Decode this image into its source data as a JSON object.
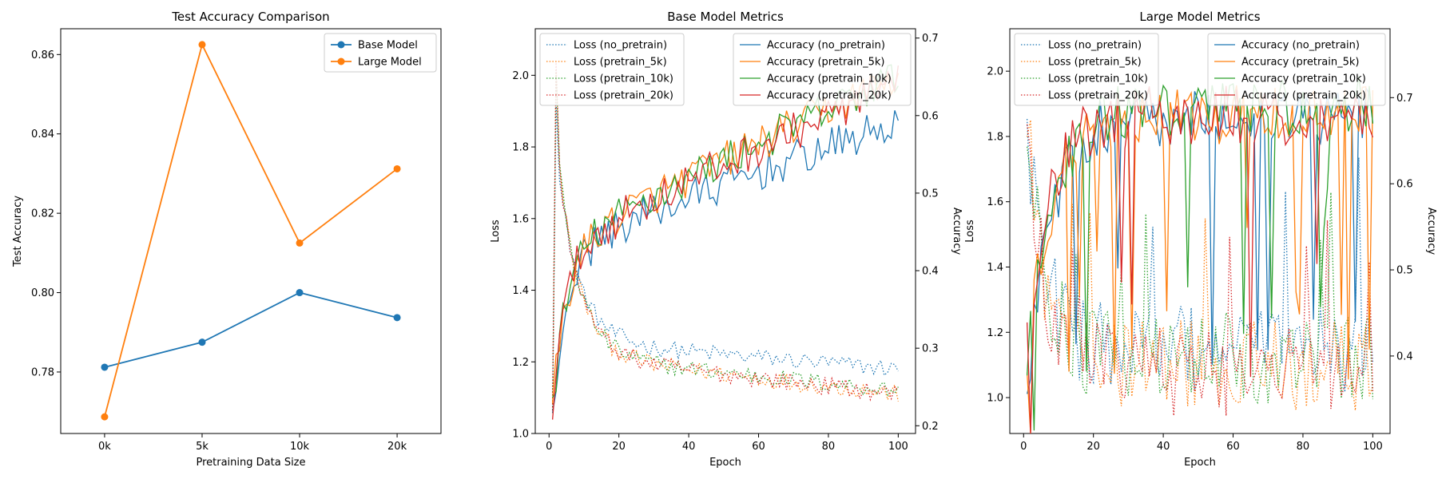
{
  "colors": {
    "blue": "#1f77b4",
    "orange": "#ff7f0e",
    "green": "#2ca02c",
    "red": "#d62728"
  },
  "chart_data": [
    {
      "type": "line",
      "title": "Test Accuracy Comparison",
      "xlabel": "Pretraining Data Size",
      "ylabel": "Test Accuracy",
      "categories": [
        "0k",
        "5k",
        "10k",
        "20k"
      ],
      "ylim": [
        0.7645,
        0.8665
      ],
      "yticks": [
        "0.78",
        "0.80",
        "0.82",
        "0.84",
        "0.86"
      ],
      "legend": "top-right",
      "series": [
        {
          "name": "Base Model",
          "color": "#1f77b4",
          "values": [
            0.7812,
            0.7875,
            0.8,
            0.7937
          ]
        },
        {
          "name": "Large Model",
          "color": "#ff7f0e",
          "values": [
            0.7687,
            0.8625,
            0.8125,
            0.8312
          ]
        }
      ]
    },
    {
      "type": "line",
      "title": "Base Model Metrics",
      "xlabel": "Epoch",
      "ylabel": "Loss",
      "y2label": "Accuracy",
      "xlim": [
        -3.95,
        104.95
      ],
      "xticks": [
        "0",
        "20",
        "40",
        "60",
        "80",
        "100"
      ],
      "ylim": [
        1.0,
        2.13
      ],
      "yticks": [
        "1.0",
        "1.2",
        "1.4",
        "1.6",
        "1.8",
        "2.0"
      ],
      "y2lim": [
        0.19,
        0.712
      ],
      "y2ticks": [
        "0.2",
        "0.3",
        "0.4",
        "0.5",
        "0.6",
        "0.7"
      ],
      "legend_left": "top-left",
      "legend_right": "top-right",
      "loss_series": [
        {
          "name": "Loss (no_pretrain)",
          "color": "#1f77b4",
          "start": 1.09,
          "mid": 1.26,
          "end": 1.18
        },
        {
          "name": "Loss (pretrain_5k)",
          "color": "#ff7f0e",
          "start": 1.08,
          "mid": 1.22,
          "end": 1.11
        },
        {
          "name": "Loss (pretrain_10k)",
          "color": "#2ca02c",
          "start": 1.07,
          "mid": 1.22,
          "end": 1.12
        },
        {
          "name": "Loss (pretrain_20k)",
          "color": "#d62728",
          "start": 1.08,
          "mid": 1.22,
          "end": 1.11
        }
      ],
      "accuracy_series": [
        {
          "name": "Accuracy (no_pretrain)",
          "color": "#1f77b4",
          "start": 0.21,
          "mid": 0.48,
          "end": 0.59
        },
        {
          "name": "Accuracy (pretrain_5k)",
          "color": "#ff7f0e",
          "start": 0.22,
          "mid": 0.49,
          "end": 0.65
        },
        {
          "name": "Accuracy (pretrain_10k)",
          "color": "#2ca02c",
          "start": 0.22,
          "mid": 0.49,
          "end": 0.65
        },
        {
          "name": "Accuracy (pretrain_20k)",
          "color": "#d62728",
          "start": 0.23,
          "mid": 0.48,
          "end": 0.64
        }
      ]
    },
    {
      "type": "line",
      "title": "Large Model Metrics",
      "xlabel": "Epoch",
      "ylabel": "Loss",
      "y2label": "Accuracy",
      "xlim": [
        -3.95,
        104.95
      ],
      "xticks": [
        "0",
        "20",
        "40",
        "60",
        "80",
        "100"
      ],
      "ylim": [
        0.89,
        2.13
      ],
      "yticks": [
        "1.0",
        "1.2",
        "1.4",
        "1.6",
        "1.8",
        "2.0"
      ],
      "y2lim": [
        0.31,
        0.78
      ],
      "y2ticks": [
        "0.4",
        "0.5",
        "0.6",
        "0.7"
      ],
      "legend_left": "top-left",
      "legend_right": "top-right",
      "loss_series": [
        {
          "name": "Loss (no_pretrain)",
          "color": "#1f77b4",
          "start": 1.85,
          "mid": 1.15,
          "end": 1.2
        },
        {
          "name": "Loss (pretrain_5k)",
          "color": "#ff7f0e",
          "start": 1.85,
          "mid": 1.1,
          "end": 1.12
        },
        {
          "name": "Loss (pretrain_10k)",
          "color": "#2ca02c",
          "start": 1.85,
          "mid": 1.12,
          "end": 1.12
        },
        {
          "name": "Loss (pretrain_20k)",
          "color": "#d62728",
          "start": 1.85,
          "mid": 1.08,
          "end": 1.1
        }
      ],
      "accuracy_series": [
        {
          "name": "Accuracy (no_pretrain)",
          "color": "#1f77b4",
          "start": 0.36,
          "mid": 0.62,
          "end": 0.7
        },
        {
          "name": "Accuracy (pretrain_5k)",
          "color": "#ff7f0e",
          "start": 0.39,
          "mid": 0.65,
          "end": 0.7
        },
        {
          "name": "Accuracy (pretrain_10k)",
          "color": "#2ca02c",
          "start": 0.38,
          "mid": 0.66,
          "end": 0.71
        },
        {
          "name": "Accuracy (pretrain_20k)",
          "color": "#d62728",
          "start": 0.43,
          "mid": 0.66,
          "end": 0.7
        }
      ]
    }
  ]
}
